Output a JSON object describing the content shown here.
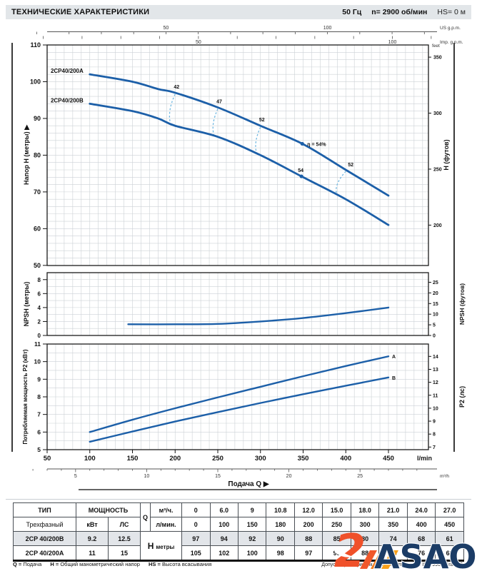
{
  "header": {
    "title": "ТЕХНИЧЕСКИЕ ХАРАКТЕРИСТИКИ",
    "frequency": "50 Гц",
    "speed": "n= 2900 об/мин",
    "suction": "HS= 0 м"
  },
  "colors": {
    "curve_blue": "#1C5FA8",
    "iso_dash_blue": "#6FB7E0",
    "grid_gray": "#CCD1D6",
    "header_bar_gray": "#E2E6E9",
    "logo_orange": "#F0512A",
    "logo_stripe": "#F58C1F",
    "logo_navy": "#1B3C66"
  },
  "chart_data": [
    {
      "type": "line",
      "name": "head-flow-curves",
      "xlabel": "Подача Q ▶",
      "ylabel_left": "Напор H (метры)  ▶",
      "ylabel_right": "H (футов)",
      "right_axis_note": "feet",
      "ylim": [
        50,
        111.5
      ],
      "xlim_lmin": [
        50,
        497
      ],
      "yticks_left_m": [
        110,
        100,
        90,
        80,
        70,
        60,
        50
      ],
      "yticks_right_feet": [
        350,
        300,
        250,
        200
      ],
      "grid": true,
      "top_axes": {
        "us": {
          "label": "US g.p.m.",
          "ticks": [
            50,
            100
          ]
        },
        "imp": {
          "label": "Imp. g.p.m.",
          "ticks": [
            50,
            100
          ]
        }
      },
      "series": [
        {
          "name": "2CP40/200A",
          "x": [
            100,
            150,
            180,
            200,
            250,
            300,
            350,
            400,
            450
          ],
          "y": [
            102,
            100,
            98,
            97,
            93,
            88,
            83,
            76,
            69
          ]
        },
        {
          "name": "2CP40/200B",
          "x": [
            100,
            150,
            180,
            200,
            250,
            300,
            350,
            400,
            450
          ],
          "y": [
            94,
            92,
            90,
            88,
            85,
            80,
            74,
            68,
            61
          ]
        }
      ],
      "efficiency": {
        "labels_on_A": [
          {
            "text": "42",
            "q": 200
          },
          {
            "text": "47",
            "q": 250
          },
          {
            "text": "52",
            "q": 300
          }
        ],
        "bep_A": {
          "text": "η = 54%",
          "q": 349
        },
        "bep_B": {
          "text": "54",
          "q": 348
        },
        "label_52_falling": {
          "text": "52",
          "q": 400
        },
        "iso_dashes": [
          [
            200,
            196
          ],
          [
            250,
            247
          ],
          [
            300,
            297
          ],
          [
            400,
            391
          ]
        ]
      }
    },
    {
      "type": "line",
      "name": "npsh-curve",
      "ylabel_left": "NPSH (метры)",
      "ylabel_right": "NPSH (футов)",
      "ylim": [
        0,
        9
      ],
      "yticks_left_m": [
        8,
        6,
        4,
        2,
        0
      ],
      "yticks_right_feet": [
        25,
        20,
        15,
        10,
        5,
        0
      ],
      "grid": true,
      "x": [
        145,
        200,
        250,
        300,
        350,
        400,
        450
      ],
      "y": [
        1.6,
        1.6,
        1.65,
        2.0,
        2.5,
        3.2,
        4.0
      ]
    },
    {
      "type": "line",
      "name": "power-curves",
      "ylabel_left": "Потребляемая мощность P2 (кВт)",
      "ylabel_right": "P2 (лс)",
      "ylim": [
        5,
        11
      ],
      "yticks_left_kw": [
        11,
        10,
        9,
        8,
        7,
        6,
        5
      ],
      "yticks_right_hp": [
        14,
        13,
        12,
        11,
        10,
        9,
        8,
        7
      ],
      "grid": true,
      "xticks_lmin": [
        50,
        100,
        150,
        200,
        250,
        300,
        350,
        400,
        450
      ],
      "x_unit": "l/min",
      "sub_axis": {
        "unit": "m³/h",
        "ticks": [
          5,
          10,
          15,
          20,
          25
        ]
      },
      "x_title": "Подача Q  ▶",
      "series": [
        {
          "name": "A",
          "x": [
            100,
            150,
            200,
            250,
            300,
            350,
            400,
            450
          ],
          "y": [
            6.0,
            6.7,
            7.35,
            7.97,
            8.57,
            9.17,
            9.75,
            10.3
          ]
        },
        {
          "name": "B",
          "x": [
            100,
            150,
            200,
            250,
            300,
            350,
            400,
            450
          ],
          "y": [
            5.45,
            6.03,
            6.6,
            7.13,
            7.65,
            8.15,
            8.63,
            9.1
          ]
        }
      ]
    }
  ],
  "table": {
    "type_header": "ТИП",
    "type_sub": "Трехфазный",
    "power_header": "МОЩНОСТЬ",
    "power_col_kw": "кВт",
    "power_col_hp": "ЛС",
    "q_label": "Q",
    "q_unit_m3h": "м³/ч.",
    "q_unit_lmin": "л/мин.",
    "q_values_m3h": [
      "0",
      "6.0",
      "9",
      "10.8",
      "12.0",
      "15.0",
      "18.0",
      "21.0",
      "24.0",
      "27.0"
    ],
    "q_values_lmin": [
      "0",
      "100",
      "150",
      "180",
      "200",
      "250",
      "300",
      "350",
      "400",
      "450"
    ],
    "h_label": "H",
    "h_unit": "метры",
    "rows": [
      {
        "type": "2CP 40/200B",
        "kw": "9.2",
        "hp": "12.5",
        "h": [
          "97",
          "94",
          "92",
          "90",
          "88",
          "85",
          "80",
          "74",
          "68",
          "61"
        ]
      },
      {
        "type": "2CP 40/200A",
        "kw": "11",
        "hp": "15",
        "h": [
          "105",
          "102",
          "100",
          "98",
          "97",
          "93",
          "88",
          "83",
          "76",
          "69"
        ]
      }
    ]
  },
  "footer": {
    "legend": [
      {
        "k": "Q =",
        "v": "Подача"
      },
      {
        "k": "H =",
        "v": "Общий манометрический напор"
      },
      {
        "k": "HS =",
        "v": "Высота всасывания"
      }
    ],
    "tolerance": "Допуск характеристик в соответствии с EN ISO 9906 Grade 3."
  },
  "logo": {
    "numeral": "2",
    "text": "ASAO"
  }
}
